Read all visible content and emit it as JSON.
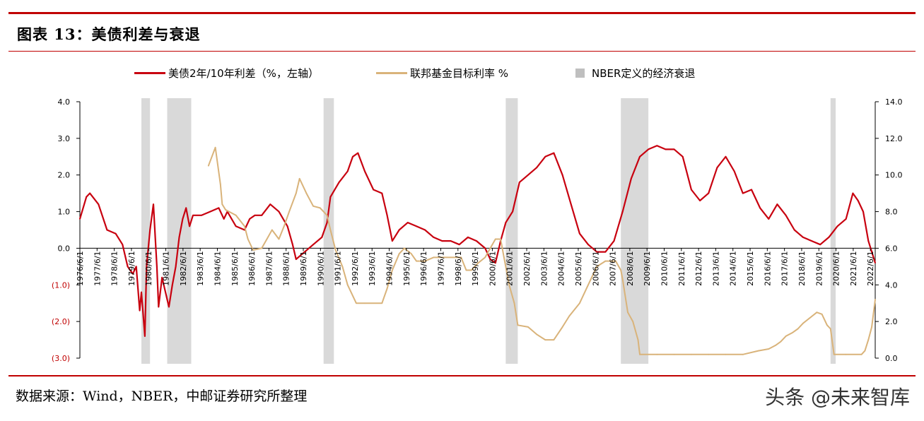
{
  "title": "图表 13：美债利差与衰退",
  "source": "数据来源：Wind，NBER，中邮证券研究所整理",
  "watermark": "头条 @未来智库",
  "chart_data": {
    "type": "line",
    "legend_position": "top",
    "grid": false,
    "legend": [
      {
        "label": "美债2年/10年利差（%，左轴）",
        "color": "#c8000f",
        "kind": "line"
      },
      {
        "label": "联邦基金目标利率 %",
        "color": "#d9b37a",
        "kind": "line"
      },
      {
        "label": "NBER定义的经济衰退",
        "color": "#bfbfbf",
        "kind": "box"
      }
    ],
    "y_left": {
      "range": [
        -3.0,
        4.0
      ],
      "ticks": [
        "4.0",
        "3.0",
        "2.0",
        "1.0",
        "0.0",
        "(1.0)",
        "(2.0)",
        "(3.0)"
      ],
      "tick_values": [
        4,
        3,
        2,
        1,
        0,
        -1,
        -2,
        -3
      ],
      "color_negative": "#c00000"
    },
    "y_right": {
      "range": [
        0.0,
        14.0
      ],
      "ticks": [
        "14.0",
        "12.0",
        "10.0",
        "8.0",
        "6.0",
        "4.0",
        "2.0",
        "0.0"
      ],
      "tick_values": [
        14,
        12,
        10,
        8,
        6,
        4,
        2,
        0
      ]
    },
    "x": {
      "range": [
        1976.42,
        2022.7
      ],
      "tick_labels": [
        "1976/6/1",
        "1977/6/1",
        "1978/6/1",
        "1979/6/1",
        "1980/6/1",
        "1981/6/1",
        "1982/6/1",
        "1983/6/1",
        "1984/6/1",
        "1985/6/1",
        "1986/6/1",
        "1987/6/1",
        "1988/6/1",
        "1989/6/1",
        "1990/6/1",
        "1991/6/1",
        "1992/6/1",
        "1993/6/1",
        "1994/6/1",
        "1995/6/1",
        "1996/6/1",
        "1997/6/1",
        "1998/6/1",
        "1999/6/1",
        "2000/6/1",
        "2001/6/1",
        "2002/6/1",
        "2003/6/1",
        "2004/6/1",
        "2005/6/1",
        "2006/6/1",
        "2007/6/1",
        "2008/6/1",
        "2009/6/1",
        "2010/6/1",
        "2011/6/1",
        "2012/6/1",
        "2013/6/1",
        "2014/6/1",
        "2015/6/1",
        "2016/6/1",
        "2017/6/1",
        "2018/6/1",
        "2019/6/1",
        "2020/6/1",
        "2021/6/1",
        "2022/6/1"
      ]
    },
    "recessions": [
      [
        1980.0,
        1980.5
      ],
      [
        1981.5,
        1982.9
      ],
      [
        1990.6,
        1991.2
      ],
      [
        2001.2,
        2001.9
      ],
      [
        2007.9,
        2009.5
      ],
      [
        2020.1,
        2020.4
      ]
    ],
    "series": [
      {
        "name": "美债2年/10年利差（%，左轴）",
        "axis": "left",
        "x": [
          1976.42,
          1976.8,
          1977.0,
          1977.5,
          1978.0,
          1978.5,
          1978.9,
          1979.2,
          1979.5,
          1979.7,
          1979.9,
          1980.0,
          1980.2,
          1980.3,
          1980.5,
          1980.7,
          1980.9,
          1981.0,
          1981.2,
          1981.4,
          1981.6,
          1981.8,
          1982.0,
          1982.2,
          1982.4,
          1982.6,
          1982.8,
          1983.0,
          1983.5,
          1984.0,
          1984.5,
          1984.8,
          1985.0,
          1985.5,
          1986.0,
          1986.3,
          1986.6,
          1987.0,
          1987.5,
          1988.0,
          1988.5,
          1988.8,
          1989.0,
          1989.5,
          1990.0,
          1990.5,
          1990.8,
          1991.0,
          1991.5,
          1992.0,
          1992.3,
          1992.6,
          1993.0,
          1993.5,
          1994.0,
          1994.3,
          1994.6,
          1995.0,
          1995.5,
          1996.0,
          1996.5,
          1997.0,
          1997.5,
          1998.0,
          1998.5,
          1999.0,
          1999.5,
          2000.0,
          2000.3,
          2000.6,
          2000.9,
          2001.2,
          2001.6,
          2002.0,
          2002.5,
          2003.0,
          2003.5,
          2004.0,
          2004.5,
          2005.0,
          2005.5,
          2006.0,
          2006.5,
          2007.0,
          2007.5,
          2008.0,
          2008.5,
          2009.0,
          2009.5,
          2010.0,
          2010.5,
          2011.0,
          2011.5,
          2012.0,
          2012.5,
          2013.0,
          2013.5,
          2014.0,
          2014.5,
          2015.0,
          2015.5,
          2016.0,
          2016.5,
          2017.0,
          2017.5,
          2018.0,
          2018.5,
          2019.0,
          2019.5,
          2020.0,
          2020.5,
          2021.0,
          2021.4,
          2021.7,
          2022.0,
          2022.3,
          2022.7
        ],
        "y": [
          0.8,
          1.4,
          1.5,
          1.2,
          0.5,
          0.4,
          0.1,
          -0.5,
          -0.7,
          -0.5,
          -1.7,
          -1.2,
          -2.4,
          -0.5,
          0.5,
          1.2,
          -0.5,
          -1.6,
          -0.8,
          -1.2,
          -1.6,
          -1.0,
          -0.5,
          0.3,
          0.8,
          1.1,
          0.6,
          0.9,
          0.9,
          1.0,
          1.1,
          0.8,
          1.0,
          0.6,
          0.5,
          0.8,
          0.9,
          0.9,
          1.2,
          1.0,
          0.6,
          0.1,
          -0.3,
          -0.1,
          0.1,
          0.3,
          0.7,
          1.4,
          1.8,
          2.1,
          2.5,
          2.6,
          2.1,
          1.6,
          1.5,
          0.9,
          0.2,
          0.5,
          0.7,
          0.6,
          0.5,
          0.3,
          0.2,
          0.2,
          0.1,
          0.3,
          0.2,
          0.0,
          -0.3,
          -0.4,
          0.2,
          0.7,
          1.0,
          1.8,
          2.0,
          2.2,
          2.5,
          2.6,
          2.0,
          1.2,
          0.4,
          0.1,
          -0.1,
          -0.1,
          0.2,
          1.0,
          1.9,
          2.5,
          2.7,
          2.8,
          2.7,
          2.7,
          2.5,
          1.6,
          1.3,
          1.5,
          2.2,
          2.5,
          2.1,
          1.5,
          1.6,
          1.1,
          0.8,
          1.2,
          0.9,
          0.5,
          0.3,
          0.2,
          0.1,
          0.3,
          0.6,
          0.8,
          1.5,
          1.3,
          1.0,
          0.2,
          -0.4
        ]
      },
      {
        "name": "联邦基金目标利率 %",
        "axis": "right",
        "x": [
          1983.9,
          1984.3,
          1984.6,
          1984.7,
          1984.9,
          1985.1,
          1985.5,
          1986.0,
          1986.2,
          1986.5,
          1987.0,
          1987.3,
          1987.6,
          1988.0,
          1988.3,
          1988.6,
          1989.0,
          1989.2,
          1989.6,
          1990.0,
          1990.4,
          1990.8,
          1991.0,
          1991.3,
          1991.7,
          1992.0,
          1992.5,
          1993.0,
          1994.0,
          1994.3,
          1994.6,
          1995.0,
          1995.3,
          1995.7,
          1996.0,
          1996.5,
          1997.0,
          1997.5,
          1998.0,
          1998.6,
          1998.9,
          1999.2,
          1999.6,
          2000.0,
          2000.3,
          2000.6,
          2000.9,
          2001.1,
          2001.4,
          2001.7,
          2001.9,
          2002.5,
          2003.0,
          2003.5,
          2004.0,
          2004.5,
          2004.9,
          2005.5,
          2006.0,
          2006.5,
          2007.0,
          2007.6,
          2007.9,
          2008.0,
          2008.3,
          2008.6,
          2008.9,
          2009.0,
          2010.0,
          2011.0,
          2012.0,
          2013.0,
          2014.0,
          2015.0,
          2015.9,
          2016.5,
          2016.9,
          2017.2,
          2017.5,
          2017.9,
          2018.2,
          2018.5,
          2018.9,
          2019.3,
          2019.6,
          2019.9,
          2020.1,
          2020.3,
          2021.0,
          2021.9,
          2022.1,
          2022.3,
          2022.5,
          2022.7
        ],
        "y": [
          10.5,
          11.5,
          9.5,
          8.4,
          8.1,
          8.0,
          7.8,
          7.2,
          6.5,
          5.9,
          6.0,
          6.5,
          7.0,
          6.5,
          7.2,
          8.0,
          9.0,
          9.8,
          9.0,
          8.3,
          8.2,
          7.8,
          7.0,
          5.9,
          5.0,
          4.0,
          3.0,
          3.0,
          3.0,
          3.8,
          4.8,
          5.7,
          6.0,
          5.7,
          5.3,
          5.3,
          5.5,
          5.5,
          5.5,
          5.5,
          4.8,
          4.8,
          5.2,
          5.5,
          6.0,
          6.5,
          6.5,
          5.5,
          4.0,
          3.0,
          1.8,
          1.7,
          1.3,
          1.0,
          1.0,
          1.7,
          2.3,
          3.0,
          4.0,
          5.0,
          5.3,
          5.3,
          4.8,
          4.3,
          2.5,
          2.0,
          1.0,
          0.2,
          0.2,
          0.2,
          0.2,
          0.2,
          0.2,
          0.2,
          0.4,
          0.5,
          0.7,
          0.9,
          1.2,
          1.4,
          1.6,
          1.9,
          2.2,
          2.5,
          2.4,
          1.8,
          1.6,
          0.2,
          0.2,
          0.2,
          0.4,
          1.0,
          1.7,
          3.2
        ]
      }
    ]
  }
}
